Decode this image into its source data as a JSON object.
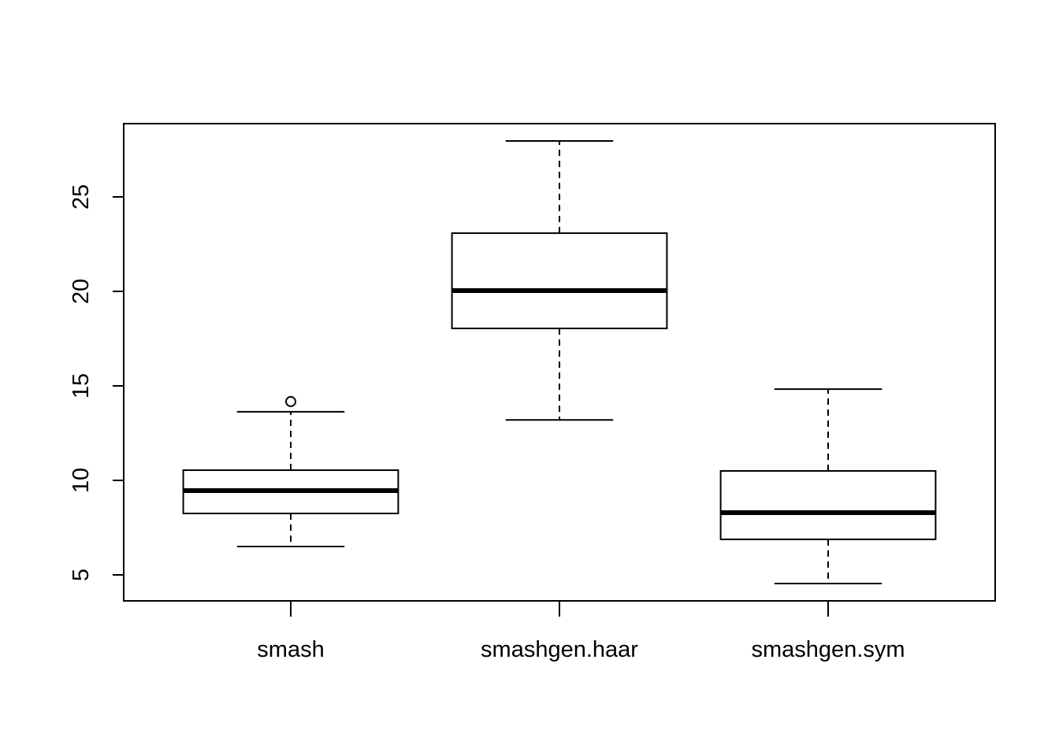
{
  "chart_data": {
    "type": "box",
    "categories": [
      "smash",
      "smashgen.haar",
      "smashgen.sym"
    ],
    "boxes": [
      {
        "min": 6.5,
        "q1": 8.25,
        "median": 9.46,
        "q3": 10.54,
        "max": 13.63,
        "outliers": [
          14.17
        ]
      },
      {
        "min": 13.2,
        "q1": 18.04,
        "median": 20.04,
        "q3": 23.08,
        "max": 27.96
      },
      {
        "min": 4.54,
        "q1": 6.88,
        "median": 8.29,
        "q3": 10.5,
        "max": 14.83
      }
    ],
    "ylim": [
      3.625,
      28.875
    ],
    "yticks": [
      5,
      10,
      15,
      20,
      25
    ],
    "color": "#000000"
  }
}
